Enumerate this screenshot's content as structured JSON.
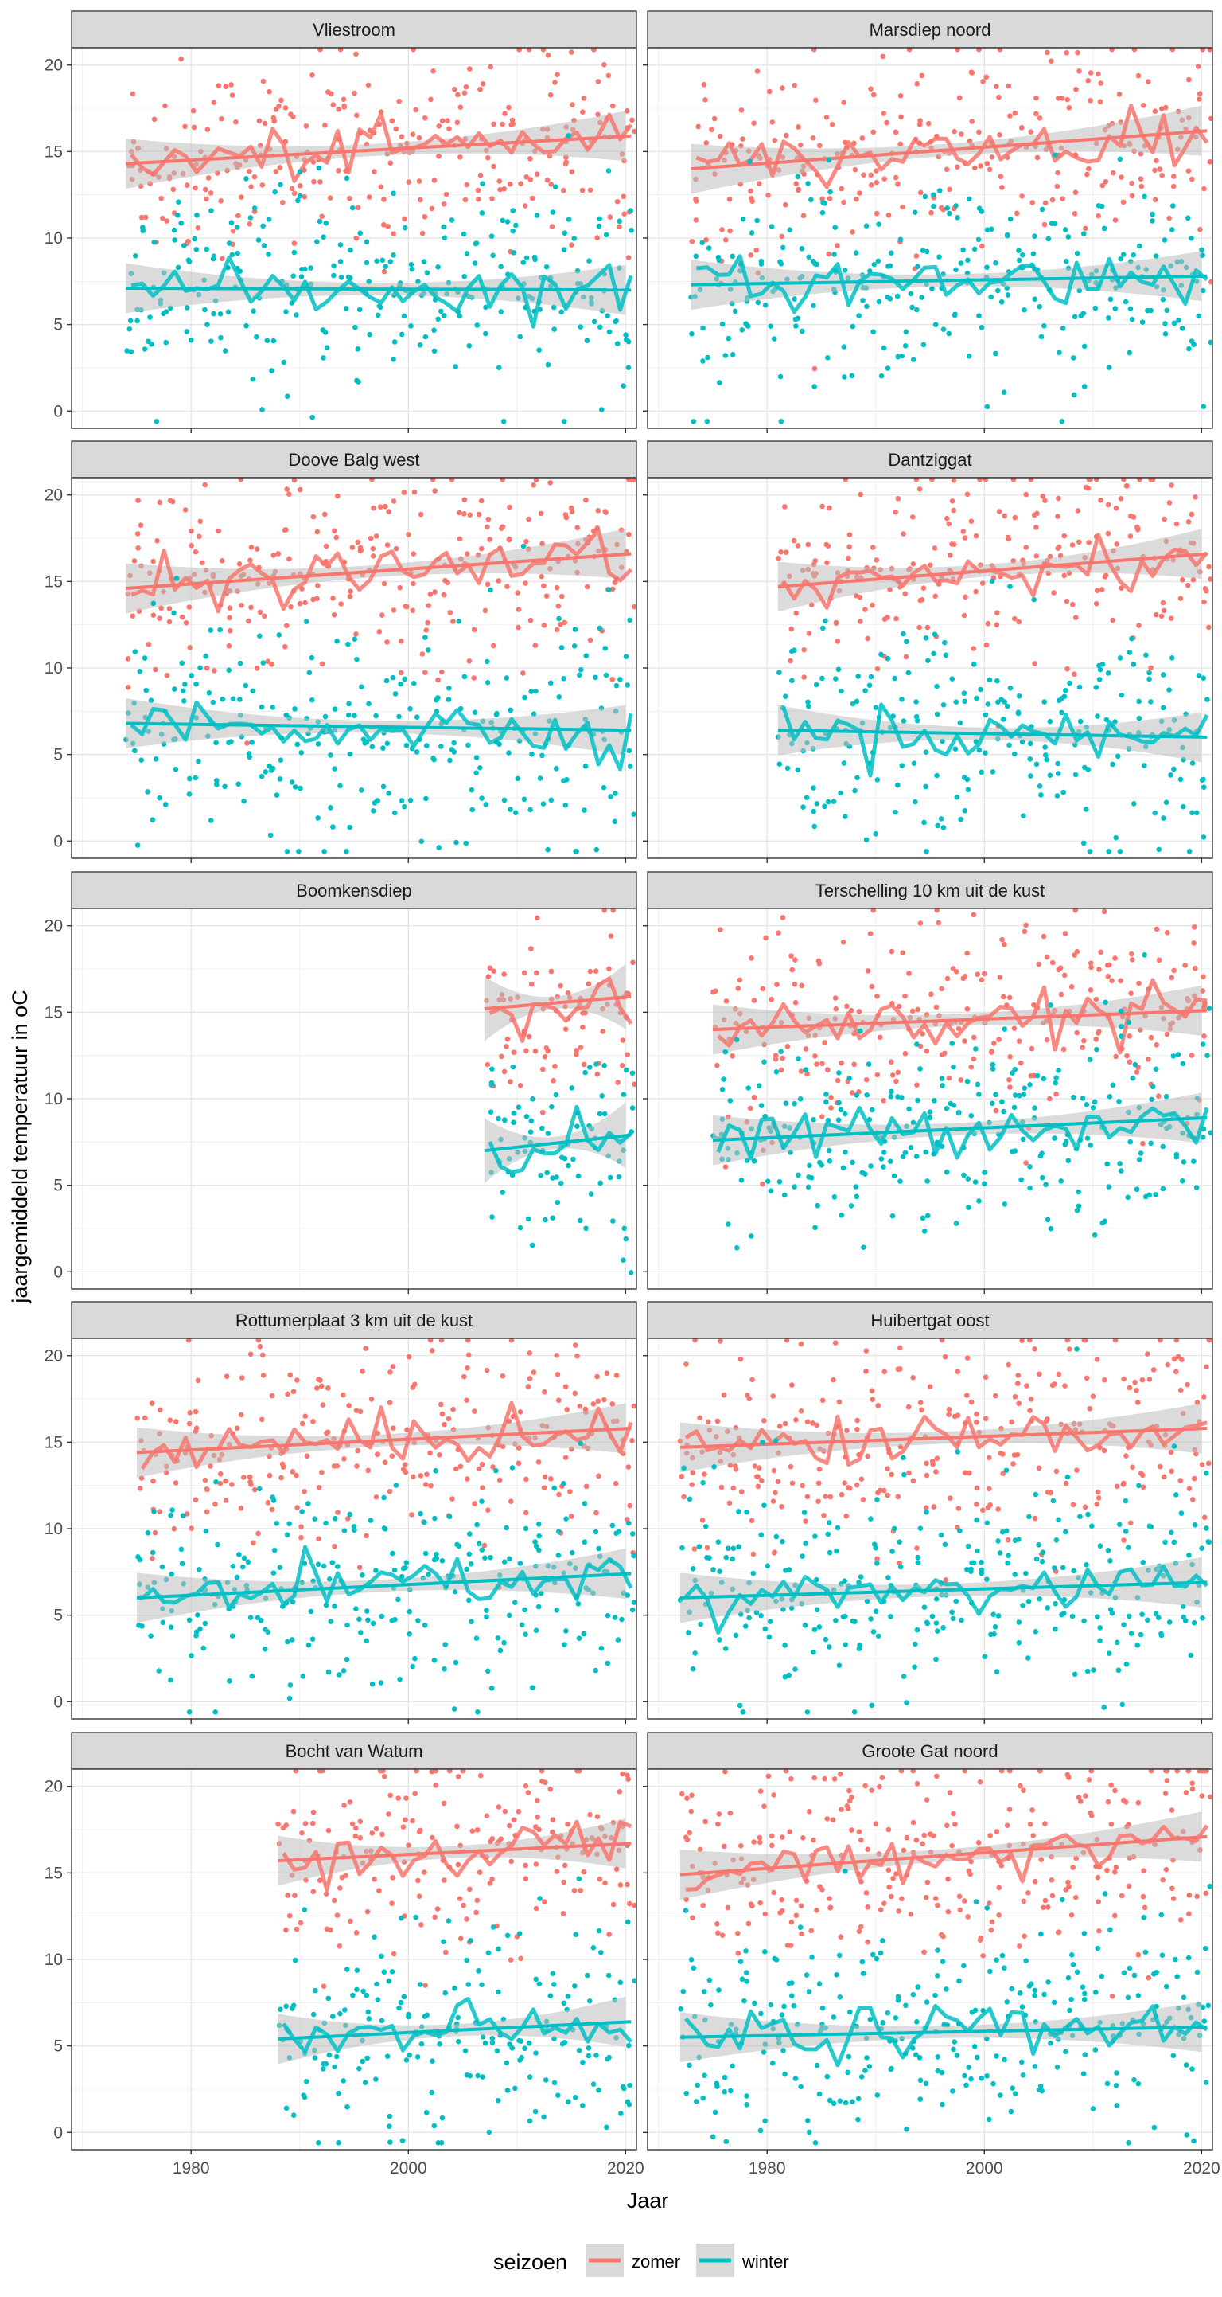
{
  "chart_data": {
    "type": "scatter",
    "xlabel": "Jaar",
    "ylabel": "jaargemiddeld temperatuur in oC",
    "xlim": [
      1969,
      2021
    ],
    "ylim": [
      -1,
      21
    ],
    "x_ticks": [
      1980,
      2000,
      2020
    ],
    "y_ticks": [
      0,
      5,
      10,
      15,
      20
    ],
    "grid": true,
    "legend": {
      "title": "seizoen",
      "position": "bottom",
      "entries": [
        {
          "label": "zomer",
          "color": "#F8766D"
        },
        {
          "label": "winter",
          "color": "#00BFC4"
        }
      ]
    },
    "colors": {
      "zomer": "#F8766D",
      "winter": "#00BFC4",
      "strip": "#d9d9d9",
      "band": "#bebebe"
    },
    "panels": [
      {
        "title": "Vliestroom",
        "start": 1974,
        "end": 2020,
        "series": [
          {
            "name": "zomer",
            "fit_start": 14.3,
            "fit_end": 15.9,
            "mean": 15.0,
            "spread": 2.9
          },
          {
            "name": "winter",
            "fit_start": 7.1,
            "fit_end": 7.0,
            "mean": 7.0,
            "spread": 2.9
          }
        ]
      },
      {
        "title": "Marsdiep noord",
        "start": 1973,
        "end": 2020,
        "series": [
          {
            "name": "zomer",
            "fit_start": 14.0,
            "fit_end": 16.2,
            "mean": 15.0,
            "spread": 3.0
          },
          {
            "name": "winter",
            "fit_start": 7.3,
            "fit_end": 7.8,
            "mean": 7.5,
            "spread": 3.0
          }
        ]
      },
      {
        "title": "Doove Balg west",
        "start": 1974,
        "end": 2020,
        "series": [
          {
            "name": "zomer",
            "fit_start": 14.6,
            "fit_end": 16.6,
            "mean": 15.5,
            "spread": 3.0
          },
          {
            "name": "winter",
            "fit_start": 6.8,
            "fit_end": 6.4,
            "mean": 6.6,
            "spread": 3.1
          }
        ]
      },
      {
        "title": "Dantziggat",
        "start": 1981,
        "end": 2020,
        "series": [
          {
            "name": "zomer",
            "fit_start": 14.7,
            "fit_end": 16.6,
            "mean": 15.7,
            "spread": 3.0
          },
          {
            "name": "winter",
            "fit_start": 6.4,
            "fit_end": 6.0,
            "mean": 6.2,
            "spread": 3.1
          }
        ]
      },
      {
        "title": "Boomkensdiep",
        "start": 2007,
        "end": 2020,
        "series": [
          {
            "name": "zomer",
            "fit_start": 15.2,
            "fit_end": 15.9,
            "mean": 15.5,
            "spread": 2.9
          },
          {
            "name": "winter",
            "fit_start": 7.0,
            "fit_end": 7.9,
            "mean": 7.4,
            "spread": 3.0
          }
        ]
      },
      {
        "title": "Terschelling 10 km uit de kust",
        "start": 1975,
        "end": 2020,
        "series": [
          {
            "name": "zomer",
            "fit_start": 14.0,
            "fit_end": 15.1,
            "mean": 14.5,
            "spread": 3.0
          },
          {
            "name": "winter",
            "fit_start": 7.6,
            "fit_end": 8.9,
            "mean": 8.2,
            "spread": 2.9
          }
        ]
      },
      {
        "title": "Rottumerplaat 3 km uit de kust",
        "start": 1975,
        "end": 2020,
        "series": [
          {
            "name": "zomer",
            "fit_start": 14.4,
            "fit_end": 15.8,
            "mean": 15.0,
            "spread": 3.0
          },
          {
            "name": "winter",
            "fit_start": 6.0,
            "fit_end": 7.4,
            "mean": 6.6,
            "spread": 3.1
          }
        ]
      },
      {
        "title": "Huibertgat oost",
        "start": 1972,
        "end": 2020,
        "series": [
          {
            "name": "zomer",
            "fit_start": 14.7,
            "fit_end": 15.8,
            "mean": 15.2,
            "spread": 3.0
          },
          {
            "name": "winter",
            "fit_start": 6.0,
            "fit_end": 6.9,
            "mean": 6.4,
            "spread": 3.2
          }
        ]
      },
      {
        "title": "Bocht van Watum",
        "start": 1988,
        "end": 2020,
        "series": [
          {
            "name": "zomer",
            "fit_start": 15.7,
            "fit_end": 16.7,
            "mean": 16.2,
            "spread": 3.0
          },
          {
            "name": "winter",
            "fit_start": 5.4,
            "fit_end": 6.4,
            "mean": 5.9,
            "spread": 3.0
          }
        ]
      },
      {
        "title": "Groote Gat noord",
        "start": 1972,
        "end": 2020,
        "series": [
          {
            "name": "zomer",
            "fit_start": 14.9,
            "fit_end": 17.1,
            "mean": 16.0,
            "spread": 3.0
          },
          {
            "name": "winter",
            "fit_start": 5.5,
            "fit_end": 6.1,
            "mean": 5.8,
            "spread": 3.1
          }
        ]
      }
    ]
  }
}
